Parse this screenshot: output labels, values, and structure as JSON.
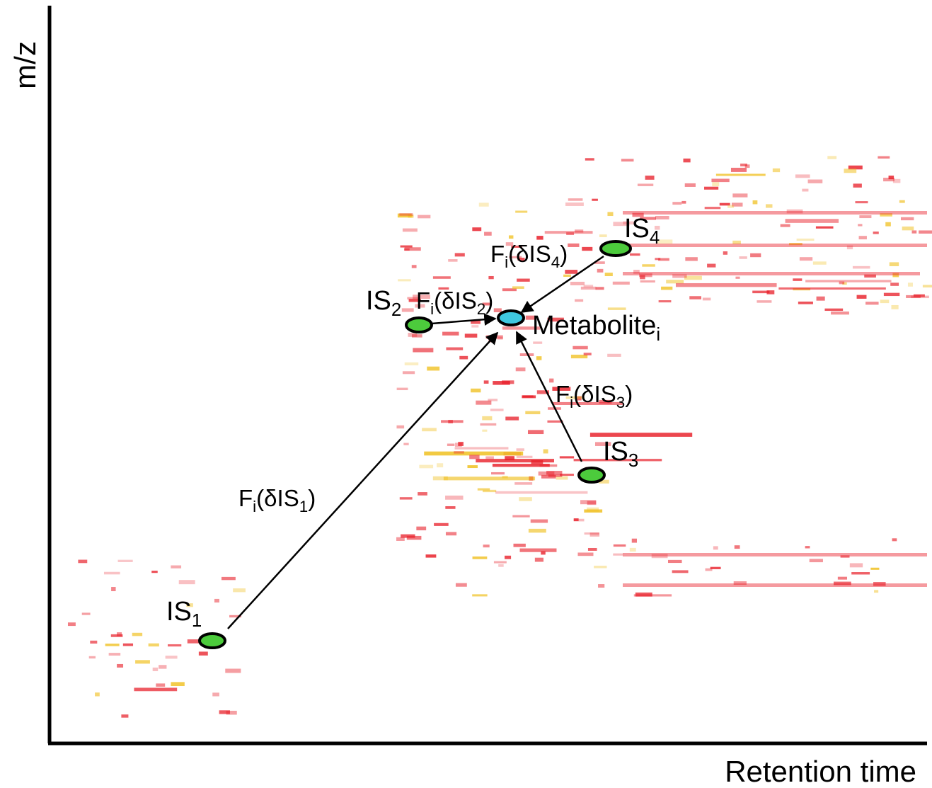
{
  "axes": {
    "y_label": "m/z",
    "x_label": "Retention time"
  },
  "nodes": [
    {
      "label": "IS",
      "sub": "1"
    },
    {
      "label": "IS",
      "sub": "2"
    },
    {
      "label": "IS",
      "sub": "3"
    },
    {
      "label": "IS",
      "sub": "4"
    },
    {
      "label": "Metabolite",
      "sub": "i"
    }
  ],
  "edges": [
    {
      "parts": [
        "F",
        "i",
        "(δIS",
        "1",
        ")"
      ]
    },
    {
      "parts": [
        "F",
        "i",
        "(δIS",
        "2",
        ")"
      ]
    },
    {
      "parts": [
        "F",
        "i",
        "(δIS",
        "3",
        ")"
      ]
    },
    {
      "parts": [
        "F",
        "i",
        "(δIS",
        "4",
        ")"
      ]
    }
  ]
}
